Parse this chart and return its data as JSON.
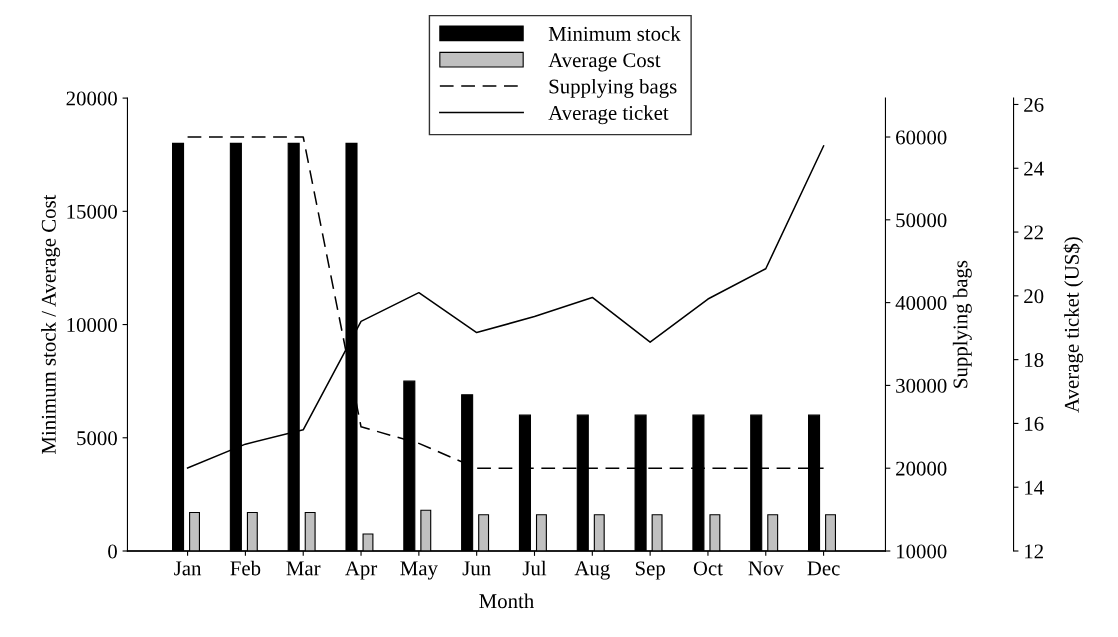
{
  "chart_data": {
    "type": "bar",
    "xlabel": "Month",
    "ylabel": "Minimum stock / Average Cost",
    "y2label": "Supplying bags",
    "y3label": "Average ticket (US$)",
    "categories": [
      "Jan",
      "Feb",
      "Mar",
      "Apr",
      "May",
      "Jun",
      "Jul",
      "Aug",
      "Sep",
      "Oct",
      "Nov",
      "Dec"
    ],
    "series": [
      {
        "name": "Minimum stock",
        "color": "#000000",
        "values": [
          18000,
          18000,
          18000,
          18000,
          7500,
          6900,
          6000,
          6000,
          6000,
          6000,
          6000,
          6000
        ]
      },
      {
        "name": "Average Cost",
        "color": "#c0c0c0",
        "values": [
          1700,
          1700,
          1700,
          750,
          1800,
          1600,
          1600,
          1600,
          1600,
          1600,
          1600,
          1600
        ]
      },
      {
        "name": "Supplying bags",
        "type": "line",
        "axis": "y2",
        "line_style": "dashed",
        "color": "#000000",
        "values": [
          60000,
          60000,
          60000,
          25000,
          23000,
          20000,
          20000,
          20000,
          20000,
          20000,
          20000,
          20000
        ]
      },
      {
        "name": "Average ticket",
        "type": "line",
        "axis": "y3",
        "line_style": "solid",
        "color": "#000000",
        "values": [
          14.6,
          15.35,
          15.8,
          19.2,
          20.1,
          18.85,
          19.35,
          19.95,
          18.55,
          19.9,
          20.85,
          24.7
        ]
      }
    ],
    "ylim": [
      0,
      20000
    ],
    "yticks": [
      0,
      5000,
      10000,
      15000,
      20000
    ],
    "y2lim": [
      10000,
      64700
    ],
    "y2ticks": [
      10000,
      20000,
      30000,
      40000,
      50000,
      60000
    ],
    "y3lim": [
      12,
      26.2
    ],
    "y3ticks": [
      12,
      14,
      16,
      18,
      20,
      22,
      24,
      26
    ],
    "grid": false,
    "legend": "top"
  }
}
